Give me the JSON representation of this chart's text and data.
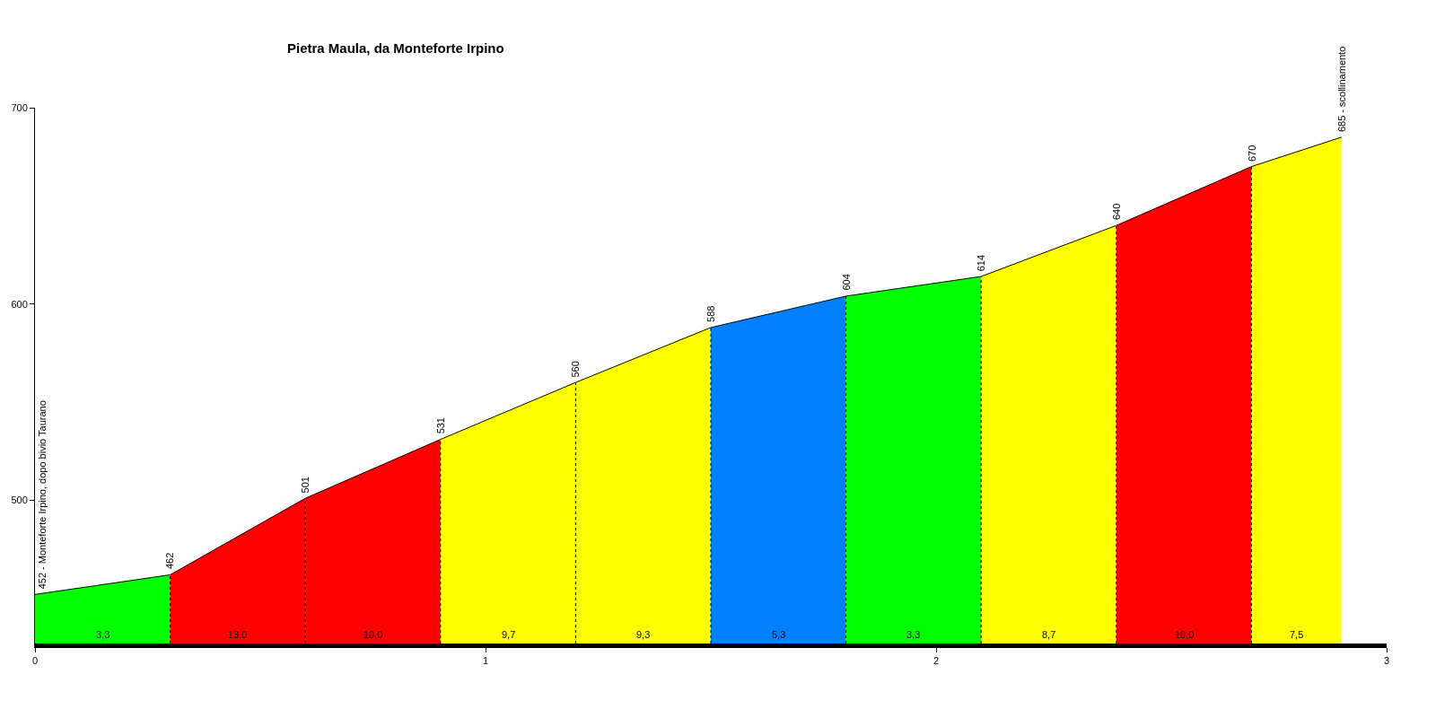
{
  "chart_data": {
    "type": "area",
    "title": "Pietra Maula, da Monteforte Irpino",
    "series": [
      {
        "name": "3,3",
        "color": "#00ff00",
        "x": [
          0,
          0.3
        ],
        "values": [
          452,
          462
        ],
        "value_labels": [
          "452 - Monteforte Irpino, dopo bivio Taurano",
          "462"
        ]
      },
      {
        "name": "13,0",
        "color": "#ff0000",
        "x": [
          0.3,
          0.6
        ],
        "values": [
          462,
          501
        ],
        "value_labels": [
          null,
          "501"
        ]
      },
      {
        "name": "10,0",
        "color": "#ff0000",
        "x": [
          0.6,
          0.9
        ],
        "values": [
          501,
          531
        ],
        "value_labels": [
          null,
          "531"
        ]
      },
      {
        "name": "9,7",
        "color": "#ffff00",
        "x": [
          0.9,
          1.2
        ],
        "values": [
          531,
          560
        ],
        "value_labels": [
          null,
          "560"
        ]
      },
      {
        "name": "9,3",
        "color": "#ffff00",
        "x": [
          1.2,
          1.5
        ],
        "values": [
          560,
          588
        ],
        "value_labels": [
          null,
          "588"
        ]
      },
      {
        "name": "5,3",
        "color": "#0080ff",
        "x": [
          1.5,
          1.8
        ],
        "values": [
          588,
          604
        ],
        "value_labels": [
          null,
          "604"
        ]
      },
      {
        "name": "3,3",
        "color": "#00ff00",
        "x": [
          1.8,
          2.1
        ],
        "values": [
          604,
          614
        ],
        "value_labels": [
          null,
          "614"
        ]
      },
      {
        "name": "8,7",
        "color": "#ffff00",
        "x": [
          2.1,
          2.4
        ],
        "values": [
          614,
          640
        ],
        "value_labels": [
          null,
          "640"
        ]
      },
      {
        "name": "10,0",
        "color": "#ff0000",
        "x": [
          2.4,
          2.7
        ],
        "values": [
          640,
          670
        ],
        "value_labels": [
          null,
          "670"
        ]
      },
      {
        "name": "7,5",
        "color": "#ffff00",
        "x": [
          2.7,
          2.9
        ],
        "values": [
          670,
          685
        ],
        "value_labels": [
          null,
          "685 - scollinamento"
        ]
      }
    ],
    "xlim": [
      0,
      3
    ],
    "xticks": [
      0,
      1,
      2,
      3
    ],
    "ylim": [
      427,
      700
    ],
    "yticks": [
      500,
      600,
      700
    ],
    "ref_lines": [
      {
        "axis": "x",
        "value": 0.3,
        "color": "#000000",
        "line_style": "dotted"
      },
      {
        "axis": "x",
        "value": 0.6,
        "color": "#000000",
        "line_style": "dotted"
      },
      {
        "axis": "x",
        "value": 0.9,
        "color": "#000000",
        "line_style": "dotted"
      },
      {
        "axis": "x",
        "value": 1.2,
        "color": "#000000",
        "line_style": "dotted"
      },
      {
        "axis": "x",
        "value": 1.5,
        "color": "#000000",
        "line_style": "dotted"
      },
      {
        "axis": "x",
        "value": 1.8,
        "color": "#000000",
        "line_style": "dotted"
      },
      {
        "axis": "x",
        "value": 2.1,
        "color": "#000000",
        "line_style": "dotted"
      },
      {
        "axis": "x",
        "value": 2.4,
        "color": "#000000",
        "line_style": "dotted"
      },
      {
        "axis": "x",
        "value": 2.7,
        "color": "#000000",
        "line_style": "dotted"
      }
    ]
  }
}
